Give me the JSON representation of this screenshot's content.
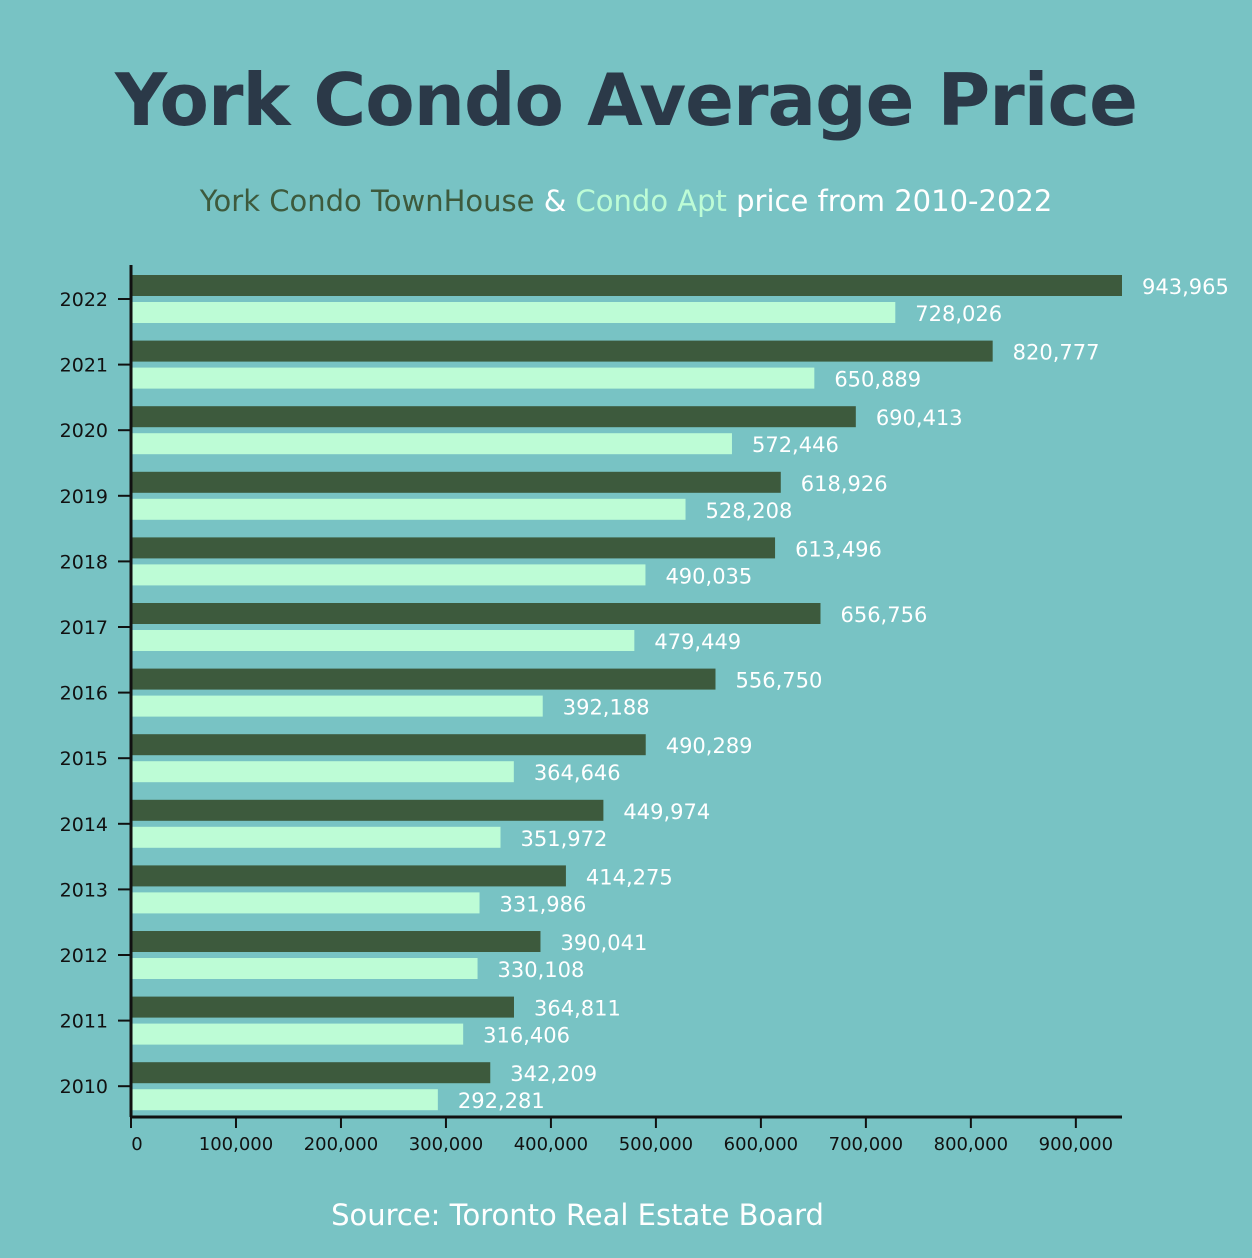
{
  "title": "York Condo Average Price",
  "subtitle": {
    "townhouse": "York Condo TownHouse",
    "amp": " & ",
    "apt": "Condo Apt",
    "rest": " price from 2010-2022"
  },
  "source": "Source: Toronto Real Estate Board",
  "colors": {
    "background": "#78c3c4",
    "townhouse": "#3d5a3d",
    "apt": "#bdfcd6",
    "title": "#2b3948"
  },
  "chart_data": {
    "type": "bar",
    "orientation": "horizontal",
    "title": "York Condo Average Price",
    "subtitle": "York Condo TownHouse & Condo Apt price from 2010-2022",
    "categories": [
      "2022",
      "2021",
      "2020",
      "2019",
      "2018",
      "2017",
      "2016",
      "2015",
      "2014",
      "2013",
      "2012",
      "2011",
      "2010"
    ],
    "series": [
      {
        "name": "York Condo TownHouse",
        "color": "#3d5a3d",
        "values": [
          943965,
          820777,
          690413,
          618926,
          613496,
          656756,
          556750,
          490289,
          449974,
          414275,
          390041,
          364811,
          342209
        ],
        "labels": [
          "943,965",
          "820,777",
          "690,413",
          "618,926",
          "613,496",
          "656,756",
          "556,750",
          "490,289",
          "449,974",
          "414,275",
          "390,041",
          "364,811",
          "342,209"
        ]
      },
      {
        "name": "Condo Apt",
        "color": "#bdfcd6",
        "values": [
          728026,
          650889,
          572446,
          528208,
          490035,
          479449,
          392188,
          364646,
          351972,
          331986,
          330108,
          316406,
          292281
        ],
        "labels": [
          "728,026",
          "650,889",
          "572,446",
          "528,208",
          "490,035",
          "479,449",
          "392,188",
          "364,646",
          "351,972",
          "331,986",
          "330,108",
          "316,406",
          "292,281"
        ]
      }
    ],
    "xlim": [
      0,
      943965
    ],
    "xticks": [
      0,
      100000,
      200000,
      300000,
      400000,
      500000,
      600000,
      700000,
      800000,
      900000
    ],
    "xtick_labels": [
      "0",
      "100,000",
      "200,000",
      "300,000",
      "400,000",
      "500,000",
      "600,000",
      "700,000",
      "800,000",
      "900,000"
    ],
    "xlabel": "",
    "ylabel": "",
    "grid": false
  }
}
